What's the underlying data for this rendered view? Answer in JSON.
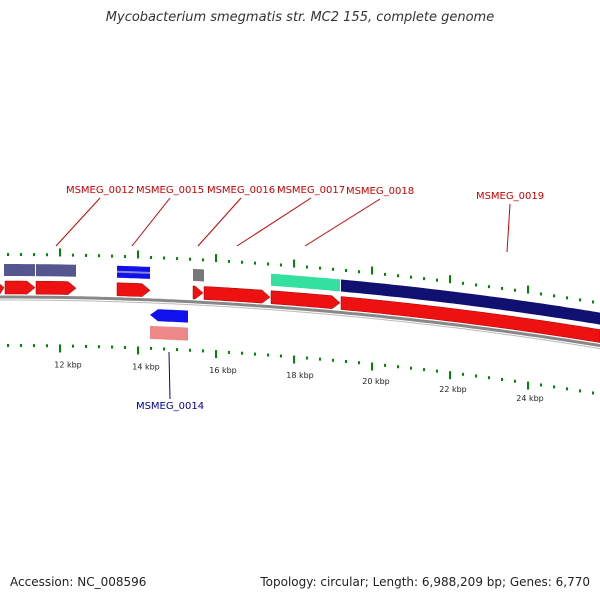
{
  "title": "Mycobacterium smegmatis str. MC2 155, complete genome",
  "accession": "Accession: NC_008596",
  "summary": "Topology: circular; Length: 6,988,209 bp; Genes: 6,770",
  "colors": {
    "gene_label": "#cc0000",
    "gene_label_blue": "#000099",
    "cds_red": "#ee1111",
    "cds_blue": "#1111ee",
    "feature_slate": "#55558f",
    "feature_navy": "#101070",
    "feature_green": "#33e0a0",
    "feature_grey": "#777777",
    "feature_pink": "#ee8888",
    "tick_green": "#008800",
    "backbone": "#888888"
  },
  "gene_labels": [
    {
      "text": "MSMEG_0012",
      "color": "red"
    },
    {
      "text": "MSMEG_0015",
      "color": "red"
    },
    {
      "text": "MSMEG_0016",
      "color": "red"
    },
    {
      "text": "MSMEG_0017",
      "color": "red"
    },
    {
      "text": "MSMEG_0018",
      "color": "red"
    },
    {
      "text": "MSMEG_0019",
      "color": "red"
    },
    {
      "text": "MSMEG_0014",
      "color": "blue"
    }
  ],
  "scale_labels": [
    "12 kbp",
    "14 kbp",
    "16 kbp",
    "18 kbp",
    "20 kbp",
    "22 kbp",
    "24 kbp"
  ]
}
